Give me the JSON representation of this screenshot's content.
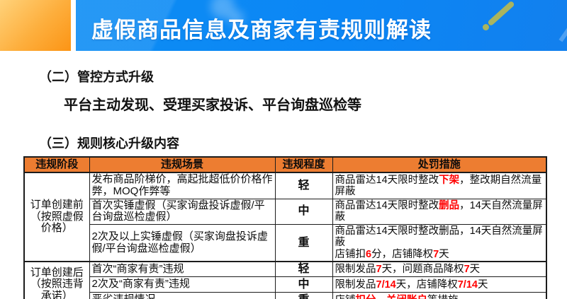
{
  "header": {
    "title": "虚假商品信息及商家有责规则解读"
  },
  "sections": [
    {
      "heading": "（二）管控方式升级",
      "body": "平台主动发现、受理买家投诉、平台询盘巡检等"
    },
    {
      "heading": "（三）规则核心升级内容"
    }
  ],
  "table": {
    "columns": [
      "违规阶段",
      "违规场景",
      "违规程度",
      "处罚措施"
    ],
    "groups": [
      {
        "stage": "订单创建前（按照虚假价格）",
        "rows": [
          {
            "scenario": "发布商品阶梯价，高起批超低价价格作弊，MOQ作弊等",
            "severity": "轻",
            "penalty": [
              {
                "t": "商品雷达14天限时整改"
              },
              {
                "t": "下架",
                "red": true
              },
              {
                "t": "，整改期自然流量屏蔽"
              }
            ]
          },
          {
            "scenario": "首次实锤虚假（买家询盘投诉虚假/平台询盘巡检虚假）",
            "severity": "中",
            "penalty": [
              {
                "t": "商品雷达14天限时整改"
              },
              {
                "t": "删品",
                "red": true
              },
              {
                "t": "，14天自然流量屏蔽"
              }
            ]
          },
          {
            "scenario": "2次及以上实锤虚假（买家询盘投诉虚假/平台询盘巡检虚假）",
            "severity": "重",
            "penalty": [
              {
                "t": "商品雷达14天限时整改删品，14天自然流量屏蔽"
              },
              {
                "br": true
              },
              {
                "t": "店铺扣"
              },
              {
                "t": "6",
                "red": true
              },
              {
                "t": "分，店铺降权"
              },
              {
                "t": "7",
                "red": true
              },
              {
                "t": "天"
              }
            ]
          }
        ]
      },
      {
        "stage": "订单创建后（按照违背承诺）",
        "rows": [
          {
            "scenario": "首次“商家有责”违规",
            "severity": "轻",
            "penalty": [
              {
                "t": "限制发品"
              },
              {
                "t": "7",
                "red": true
              },
              {
                "t": "天，问题商品降权"
              },
              {
                "t": "7",
                "red": true
              },
              {
                "t": "天"
              }
            ]
          },
          {
            "scenario": "2次及“商家有责”违规",
            "severity": "中",
            "penalty": [
              {
                "t": "限制发品"
              },
              {
                "t": "7/14",
                "red": true
              },
              {
                "t": "天，店铺降权"
              },
              {
                "t": "7/14",
                "red": true
              },
              {
                "t": "天"
              }
            ]
          },
          {
            "scenario": "恶劣违规情况",
            "severity": "重",
            "penalty": [
              {
                "t": "店铺"
              },
              {
                "t": "扣分、关闭账户",
                "red": true
              },
              {
                "t": "等措施"
              }
            ]
          }
        ]
      }
    ]
  },
  "colors": {
    "banner_blue": "#0b86f5",
    "accent_orange": "#fc9415",
    "table_header_orange": "#ED7D31",
    "penalty_red": "#ff0000",
    "decor_olive": "#a9b45f"
  }
}
